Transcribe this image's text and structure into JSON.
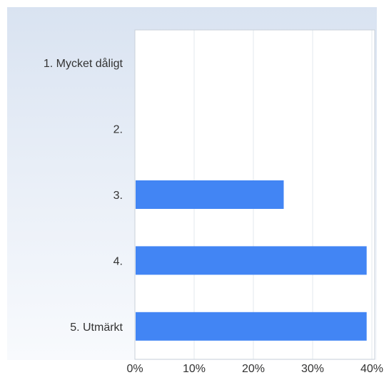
{
  "chart_data": {
    "type": "bar",
    "orientation": "horizontal",
    "categories": [
      "1. Mycket dåligt",
      "2.",
      "3.",
      "4.",
      "5. Utmärkt"
    ],
    "values": [
      0,
      0,
      25,
      39,
      39
    ],
    "xlim": [
      0,
      40
    ],
    "x_ticks": [
      "0%",
      "10%",
      "20%",
      "30%",
      "40%"
    ],
    "grid": true,
    "colors": {
      "bar": "#4285f4",
      "grid": "#e3e8ee",
      "axis": "#c9d0d9",
      "plot_bg": "#ffffff"
    }
  }
}
